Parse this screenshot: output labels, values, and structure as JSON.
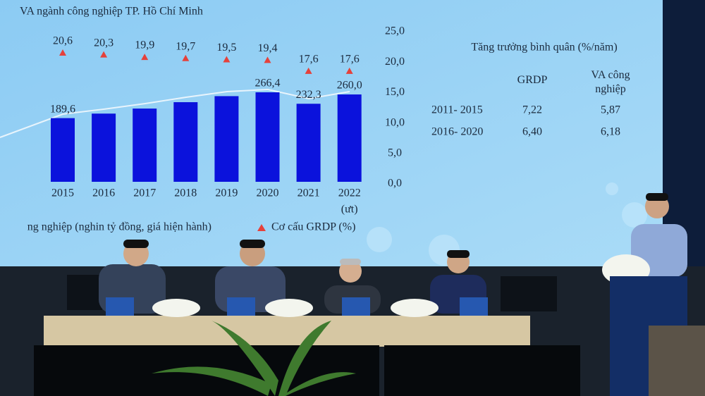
{
  "slide": {
    "title": "VA ngành công nghiệp TP. Hồ Chí Minh",
    "categories": [
      "2015",
      "2016",
      "2017",
      "2018",
      "2019",
      "2020",
      "2021",
      "2022"
    ],
    "category_note": "(ưt)",
    "bars": {
      "name": "ng nghiệp (nghin tỷ đồng, giá hiện hành)",
      "color": "#0b12dc",
      "values": [
        189.6,
        203,
        218,
        237,
        255,
        266.4,
        232.3,
        260.0
      ],
      "value_labels": [
        "189,6",
        null,
        null,
        null,
        null,
        "266,4",
        "232,3",
        "260,0"
      ]
    },
    "share": {
      "name": "Cơ cấu GRDP (%)",
      "color": "#e5413b",
      "values": [
        20.6,
        20.3,
        19.9,
        19.7,
        19.5,
        19.4,
        17.6,
        17.6
      ],
      "value_labels": [
        "20,6",
        "20,3",
        "19,9",
        "19,7",
        "19,5",
        "19,4",
        "17,6",
        "17,6"
      ]
    },
    "y2lim": [
      0,
      25
    ],
    "y2ticks": [
      {
        "value": 25,
        "label": "25,0"
      },
      {
        "value": 20,
        "label": "20,0"
      },
      {
        "value": 15,
        "label": "15,0"
      },
      {
        "value": 10,
        "label": "10,0"
      },
      {
        "value": 5,
        "label": "5,0"
      },
      {
        "value": 0,
        "label": "0,0"
      }
    ],
    "table": {
      "title": "Tăng trưởng bình quân (%/năm)",
      "columns": [
        "GRDP",
        "VA công nghiệp"
      ],
      "rows": [
        [
          "2011- 2015",
          "7,22",
          "5,87"
        ],
        [
          "2016- 2020",
          "6,40",
          "6,18"
        ]
      ]
    }
  }
}
